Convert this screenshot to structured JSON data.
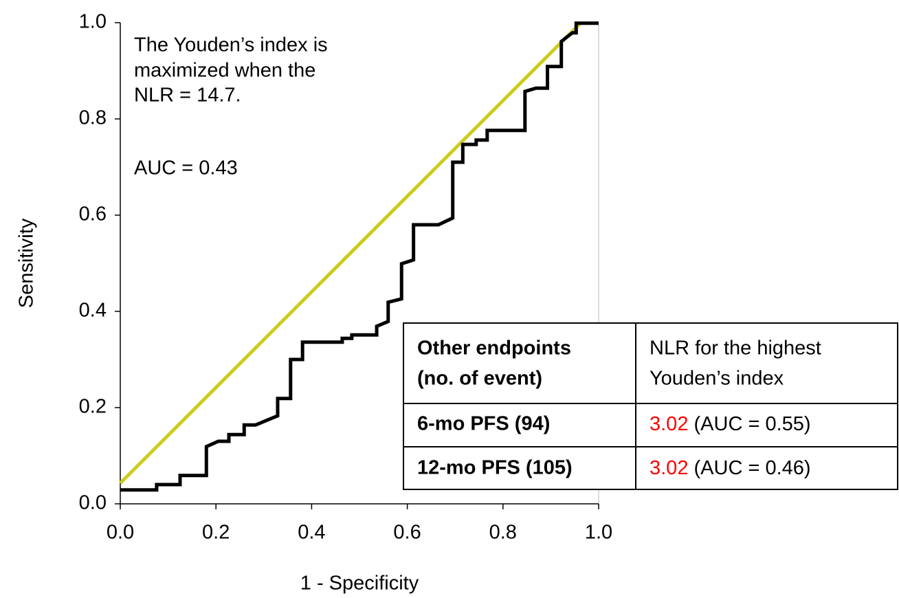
{
  "chart_data": {
    "type": "line",
    "xlabel": "1 - Specificity",
    "ylabel": "Sensitivity",
    "annotations": [
      "The Youden’s index is",
      "maximized when the",
      "NLR = 14.7.",
      "AUC = 0.43"
    ],
    "xlim": [
      0,
      1
    ],
    "ylim": [
      0,
      1
    ],
    "xticks": [
      {
        "value": 0,
        "label": "0.0"
      },
      0.2,
      0.4,
      0.6,
      0.8,
      {
        "value": 1,
        "label": "1.0"
      }
    ],
    "yticks": [
      {
        "value": 0,
        "label": "0.0"
      },
      0.2,
      0.4,
      0.6,
      0.8,
      {
        "value": 1,
        "label": "1.0"
      }
    ],
    "series": [
      {
        "color": "#000000",
        "x": [
          0,
          0.076,
          0.076,
          0.125,
          0.125,
          0.18,
          0.18,
          0.205,
          0.227,
          0.227,
          0.259,
          0.259,
          0.283,
          0.329,
          0.329,
          0.356,
          0.356,
          0.381,
          0.381,
          0.464,
          0.464,
          0.484,
          0.484,
          0.536,
          0.536,
          0.56,
          0.56,
          0.588,
          0.588,
          0.613,
          0.613,
          0.665,
          0.695,
          0.695,
          0.716,
          0.716,
          0.744,
          0.744,
          0.767,
          0.767,
          0.846,
          0.846,
          0.869,
          0.893,
          0.893,
          0.922,
          0.922,
          0.945,
          0.953,
          0.953,
          0.974,
          1
        ],
        "values": [
          0.029,
          0.029,
          0.04,
          0.04,
          0.059,
          0.059,
          0.119,
          0.13,
          0.13,
          0.144,
          0.144,
          0.164,
          0.164,
          0.183,
          0.219,
          0.219,
          0.3,
          0.3,
          0.336,
          0.336,
          0.344,
          0.344,
          0.351,
          0.351,
          0.369,
          0.379,
          0.419,
          0.426,
          0.499,
          0.507,
          0.58,
          0.58,
          0.594,
          0.71,
          0.71,
          0.747,
          0.747,
          0.756,
          0.756,
          0.776,
          0.776,
          0.857,
          0.864,
          0.864,
          0.909,
          0.909,
          0.961,
          0.979,
          0.979,
          0.999,
          0.999,
          0.999
        ]
      },
      {
        "color": "#cccc1e",
        "x": [
          0,
          0.963
        ],
        "values": [
          0.043,
          1
        ]
      }
    ]
  },
  "table": {
    "header": [
      [
        "Other endpoints",
        "(no. of event)"
      ],
      [
        "NLR for the highest",
        "Youden’s index"
      ]
    ],
    "rows": [
      {
        "endpoint": "6-mo PFS (94)",
        "nlr": "3.02",
        "auc": "(AUC = 0.55)"
      },
      {
        "endpoint": "12-mo PFS (105)",
        "nlr": "3.02",
        "auc": "(AUC = 0.46)"
      }
    ]
  }
}
